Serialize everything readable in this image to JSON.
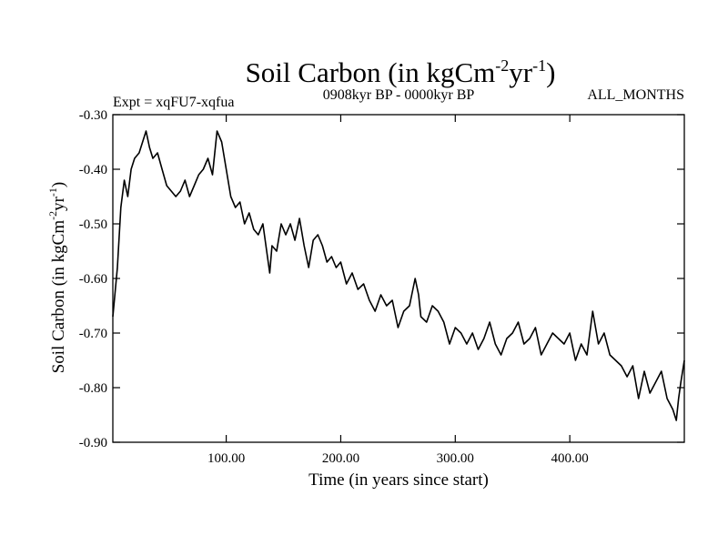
{
  "chart_data": {
    "type": "line",
    "title": "Soil Carbon (in kgCm",
    "title_sup_1": "-2",
    "title_mid": "yr",
    "title_sup_2": "-1",
    "title_end": ")",
    "subtitle_left": "Expt = xqFU7-xqfua",
    "subtitle_center": "0908kyr BP - 0000kyr BP",
    "subtitle_right": "ALL_MONTHS",
    "xlabel": "Time (in years since start)",
    "ylabel": "Soil Carbon (in kgCm",
    "ylabel_sup_1": "-2",
    "ylabel_mid": "yr",
    "ylabel_sup_2": "-1",
    "ylabel_end": ")",
    "xlim": [
      1,
      500
    ],
    "ylim": [
      -0.9,
      -0.3
    ],
    "x_ticks": [
      100,
      200,
      300,
      400
    ],
    "x_tick_labels": [
      "100.00",
      "200.00",
      "300.00",
      "400.00"
    ],
    "y_ticks": [
      -0.3,
      -0.4,
      -0.5,
      -0.6,
      -0.7,
      -0.8,
      -0.9
    ],
    "y_tick_labels": [
      "-0.30",
      "-0.40",
      "-0.50",
      "-0.60",
      "-0.70",
      "-0.80",
      "-0.90"
    ],
    "series": [
      {
        "name": "Soil Carbon",
        "color": "#000000",
        "x": [
          1,
          5,
          8,
          11,
          14,
          17,
          20,
          24,
          27,
          30,
          33,
          36,
          40,
          44,
          48,
          52,
          56,
          60,
          64,
          68,
          72,
          76,
          80,
          84,
          88,
          92,
          96,
          100,
          104,
          108,
          112,
          116,
          120,
          124,
          128,
          132,
          136,
          138,
          140,
          144,
          148,
          152,
          156,
          160,
          164,
          168,
          172,
          176,
          180,
          184,
          188,
          192,
          196,
          200,
          205,
          210,
          215,
          220,
          225,
          230,
          235,
          240,
          245,
          250,
          255,
          260,
          265,
          268,
          270,
          275,
          280,
          285,
          290,
          295,
          300,
          305,
          310,
          315,
          320,
          325,
          330,
          335,
          340,
          345,
          350,
          355,
          360,
          365,
          370,
          375,
          380,
          385,
          390,
          395,
          400,
          405,
          410,
          415,
          420,
          425,
          430,
          435,
          440,
          445,
          450,
          455,
          460,
          465,
          470,
          475,
          480,
          485,
          490,
          493,
          495,
          497,
          500
        ],
        "values": [
          -0.67,
          -0.58,
          -0.47,
          -0.42,
          -0.45,
          -0.4,
          -0.38,
          -0.37,
          -0.35,
          -0.33,
          -0.36,
          -0.38,
          -0.37,
          -0.4,
          -0.43,
          -0.44,
          -0.45,
          -0.44,
          -0.42,
          -0.45,
          -0.43,
          -0.41,
          -0.4,
          -0.38,
          -0.41,
          -0.33,
          -0.35,
          -0.4,
          -0.45,
          -0.47,
          -0.46,
          -0.5,
          -0.48,
          -0.51,
          -0.52,
          -0.5,
          -0.56,
          -0.59,
          -0.54,
          -0.55,
          -0.5,
          -0.52,
          -0.5,
          -0.53,
          -0.49,
          -0.54,
          -0.58,
          -0.53,
          -0.52,
          -0.54,
          -0.57,
          -0.56,
          -0.58,
          -0.57,
          -0.61,
          -0.59,
          -0.62,
          -0.61,
          -0.64,
          -0.66,
          -0.63,
          -0.65,
          -0.64,
          -0.69,
          -0.66,
          -0.65,
          -0.6,
          -0.63,
          -0.67,
          -0.68,
          -0.65,
          -0.66,
          -0.68,
          -0.72,
          -0.69,
          -0.7,
          -0.72,
          -0.7,
          -0.73,
          -0.71,
          -0.68,
          -0.72,
          -0.74,
          -0.71,
          -0.7,
          -0.68,
          -0.72,
          -0.71,
          -0.69,
          -0.74,
          -0.72,
          -0.7,
          -0.71,
          -0.72,
          -0.7,
          -0.75,
          -0.72,
          -0.74,
          -0.66,
          -0.72,
          -0.7,
          -0.74,
          -0.75,
          -0.76,
          -0.78,
          -0.76,
          -0.82,
          -0.77,
          -0.81,
          -0.79,
          -0.77,
          -0.82,
          -0.84,
          -0.86,
          -0.82,
          -0.79,
          -0.75
        ]
      }
    ]
  }
}
